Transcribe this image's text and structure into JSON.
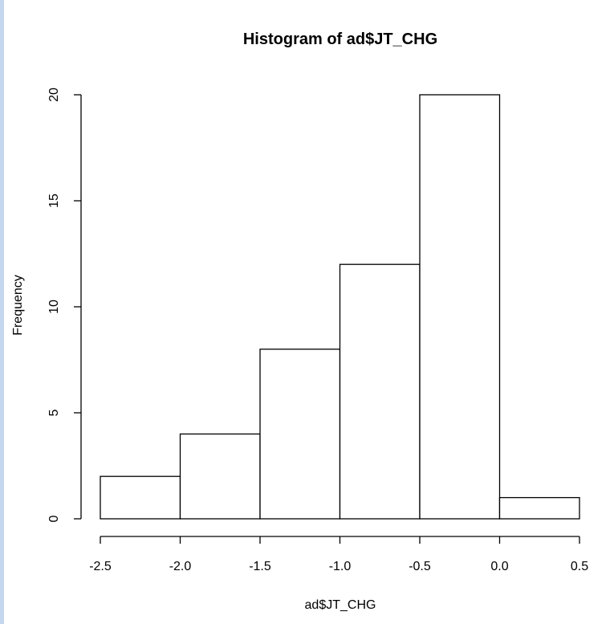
{
  "chart_data": {
    "type": "bar",
    "title": "Histogram of ad$JT_CHG",
    "xlabel": "ad$JT_CHG",
    "ylabel": "Frequency",
    "bins": [
      {
        "start": -2.5,
        "end": -2.0,
        "value": 2
      },
      {
        "start": -2.0,
        "end": -1.5,
        "value": 4
      },
      {
        "start": -1.5,
        "end": -1.0,
        "value": 8
      },
      {
        "start": -1.0,
        "end": -0.5,
        "value": 12
      },
      {
        "start": -0.5,
        "end": 0.0,
        "value": 20
      },
      {
        "start": 0.0,
        "end": 0.5,
        "value": 1
      }
    ],
    "xticks": [
      "-2.5",
      "-2.0",
      "-1.5",
      "-1.0",
      "-0.5",
      "0.0",
      "0.5"
    ],
    "xtick_values": [
      -2.5,
      -2.0,
      -1.5,
      -1.0,
      -0.5,
      0.0,
      0.5
    ],
    "yticks": [
      "0",
      "5",
      "10",
      "15",
      "20"
    ],
    "ytick_values": [
      0,
      5,
      10,
      15,
      20
    ],
    "xlim": [
      -2.5,
      0.5
    ],
    "ylim": [
      0,
      20
    ],
    "grid": false,
    "bar_fill": "#ffffff",
    "bar_stroke": "#000000"
  },
  "window": {
    "edge_color": "#c5d7ee"
  }
}
